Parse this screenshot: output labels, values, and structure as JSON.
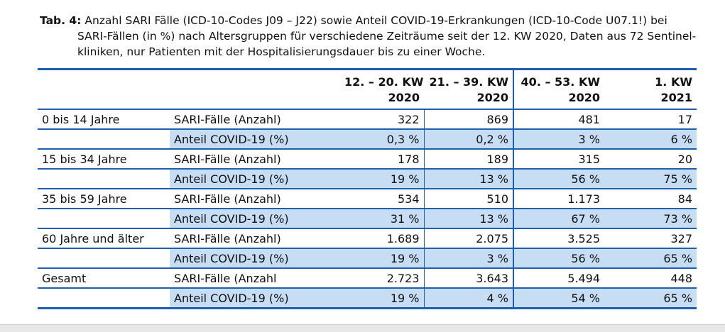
{
  "caption": {
    "label": "Tab. 4:",
    "line1": "Anzahl SARI Fälle (ICD-10-Codes J09 – J22) sowie Anteil COVID-19-Erkrankungen (ICD-10-Code U07.1!) bei",
    "line2": "SARI-Fällen (in %) nach Altersgruppen für verschiedene Zeiträume seit der 12. KW 2020, Daten aus 72 Sentinel-",
    "line3": "kliniken, nur Patienten mit der Hospitalisierungsdauer bis zu einer Woche."
  },
  "header": {
    "periods": [
      "12. – 20. KW",
      "21. – 39. KW",
      "40. – 53. KW",
      "1. KW"
    ],
    "years": [
      "2020",
      "2020",
      "2020",
      "2021"
    ]
  },
  "groups": [
    {
      "name": "0 bis 14 Jahre",
      "count_label": "SARI-Fälle (Anzahl)",
      "counts": [
        "322",
        "869",
        "481",
        "17"
      ],
      "share_label": "Anteil COVID-19 (%)",
      "shares": [
        "0,3 %",
        "0,2 %",
        "3 %",
        "6 %"
      ]
    },
    {
      "name": "15 bis 34 Jahre",
      "count_label": "SARI-Fälle (Anzahl)",
      "counts": [
        "178",
        "189",
        "315",
        "20"
      ],
      "share_label": "Anteil COVID-19 (%)",
      "shares": [
        "19 %",
        "13 %",
        "56 %",
        "75 %"
      ]
    },
    {
      "name": "35 bis 59 Jahre",
      "count_label": "SARI-Fälle (Anzahl)",
      "counts": [
        "534",
        "510",
        "1.173",
        "84"
      ],
      "share_label": "Anteil COVID-19 (%)",
      "shares": [
        "31 %",
        "13 %",
        "67 %",
        "73 %"
      ]
    },
    {
      "name": "60 Jahre und älter",
      "count_label": "SARI-Fälle (Anzahl)",
      "counts": [
        "1.689",
        "2.075",
        "3.525",
        "327"
      ],
      "share_label": "Anteil COVID-19 (%)",
      "shares": [
        "19 %",
        "3 %",
        "56 %",
        "65 %"
      ]
    },
    {
      "name": "Gesamt",
      "count_label": "SARI-Fälle (Anzahl",
      "counts": [
        "2.723",
        "3.643",
        "5.494",
        "448"
      ],
      "share_label": "Anteil COVID-19 (%)",
      "shares": [
        "19 %",
        "4 %",
        "54 %",
        "65 %"
      ]
    }
  ],
  "colors": {
    "rule": "#1d5fae",
    "share_row_fill": "#c6ddf4"
  }
}
